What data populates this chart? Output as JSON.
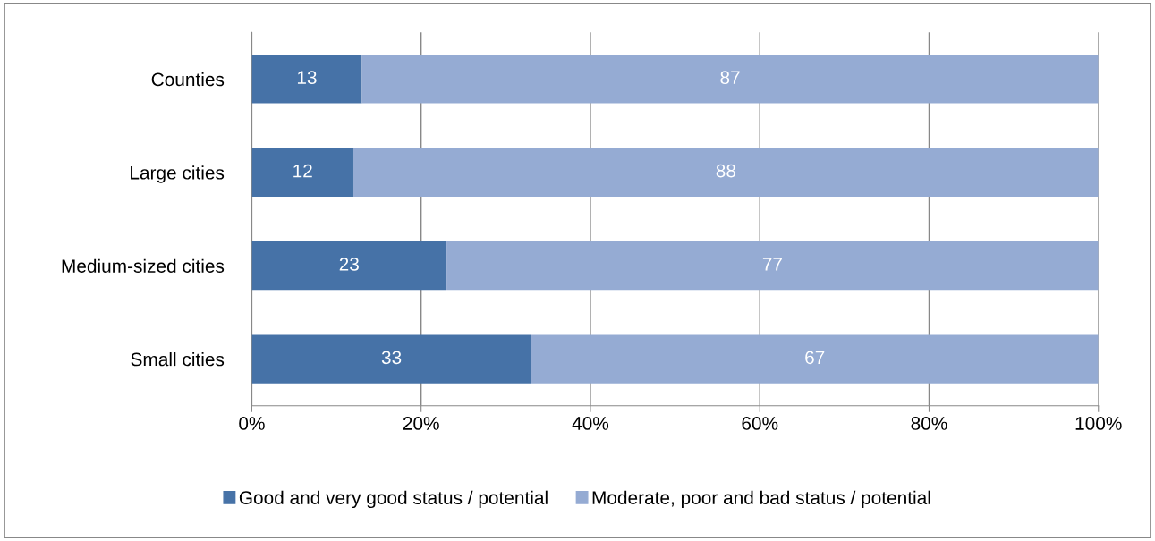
{
  "chart_data": {
    "type": "bar",
    "orientation": "horizontal",
    "stacked": true,
    "categories": [
      "Counties",
      "Large cities",
      "Medium-sized cities",
      "Small cities"
    ],
    "series": [
      {
        "name": "Good and very good status / potential",
        "color": "#4672a7",
        "values": [
          13,
          12,
          23,
          33
        ]
      },
      {
        "name": "Moderate, poor and bad status / potential",
        "color": "#95abd3",
        "values": [
          87,
          88,
          77,
          67
        ]
      }
    ],
    "xlim": [
      0,
      100
    ],
    "xticks": [
      {
        "value": 0,
        "label": "0%"
      },
      {
        "value": 20,
        "label": "20%"
      },
      {
        "value": 40,
        "label": "40%"
      },
      {
        "value": 60,
        "label": "60%"
      },
      {
        "value": 80,
        "label": "80%"
      },
      {
        "value": 100,
        "label": "100%"
      }
    ],
    "grid": "x",
    "legend": "bottom",
    "data_labels": true
  }
}
